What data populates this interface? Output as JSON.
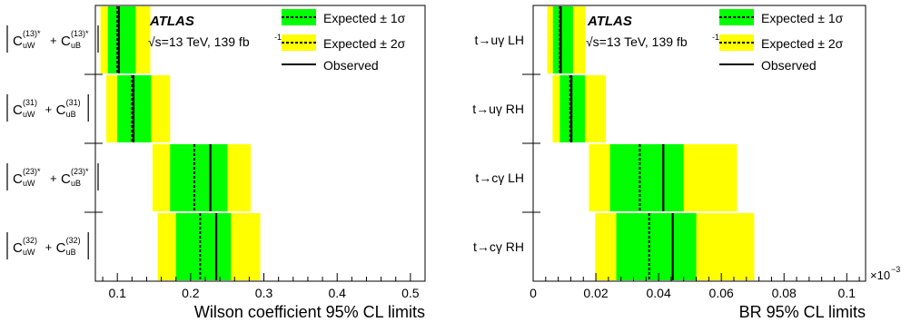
{
  "colors": {
    "band1": "#00ff00",
    "band2": "#ffff00",
    "line": "#000000"
  },
  "chart_data": [
    {
      "type": "interval",
      "xlabel": "Wilson coefficient 95% CL limits",
      "xlim": [
        0.07,
        0.52
      ],
      "x_ticks": [
        "0.1",
        "0.2",
        "0.3",
        "0.4",
        "0.5"
      ],
      "atlas": "ATLAS",
      "energy_label": "√s=13 TeV, 139 fb",
      "lumi_sup": "-1",
      "legend": [
        {
          "label": "Expected ± 1σ",
          "style": "dashed-green"
        },
        {
          "label": "Expected ± 2σ",
          "style": "dashed-yellow"
        },
        {
          "label": "Observed",
          "style": "solid"
        }
      ],
      "rows": [
        {
          "label": "|C_uW^(13)* + C_uB^(13)*|",
          "parts": [
            [
              "C",
              "uW",
              "(13)*"
            ],
            [
              "C",
              "uB",
              "(13)*"
            ]
          ],
          "abs": true,
          "exp_m2": 0.077,
          "exp_m1": 0.087,
          "exp": 0.1,
          "exp_p1": 0.125,
          "exp_p2": 0.145,
          "obs": 0.102
        },
        {
          "label": "|C_uW^(31) + C_uB^(31)|",
          "parts": [
            [
              "C",
              "uW",
              "(31)"
            ],
            [
              "C",
              "uB",
              "(31)"
            ]
          ],
          "abs": true,
          "exp_m2": 0.085,
          "exp_m1": 0.1,
          "exp": 0.12,
          "exp_p1": 0.146,
          "exp_p2": 0.172,
          "obs": 0.122
        },
        {
          "label": "|C_uW^(23)* + C_uB^(23)*|",
          "parts": [
            [
              "C",
              "uW",
              "(23)*"
            ],
            [
              "C",
              "uB",
              "(23)*"
            ]
          ],
          "abs": true,
          "exp_m2": 0.148,
          "exp_m1": 0.172,
          "exp": 0.205,
          "exp_p1": 0.25,
          "exp_p2": 0.282,
          "obs": 0.227
        },
        {
          "label": "|C_uW^(32) + C_uB^(32)|",
          "parts": [
            [
              "C",
              "uW",
              "(32)"
            ],
            [
              "C",
              "uB",
              "(32)"
            ]
          ],
          "abs": true,
          "exp_m2": 0.155,
          "exp_m1": 0.18,
          "exp": 0.213,
          "exp_p1": 0.255,
          "exp_p2": 0.295,
          "obs": 0.235
        }
      ]
    },
    {
      "type": "interval",
      "xlabel": "BR 95% CL limits",
      "xlim": [
        0,
        0.106
      ],
      "x_ticks": [
        "0",
        "0.02",
        "0.04",
        "0.06",
        "0.08",
        "0.1"
      ],
      "axis_exponent": "×10",
      "axis_exponent_sup": "−3",
      "atlas": "ATLAS",
      "energy_label": "√s=13 TeV, 139 fb",
      "lumi_sup": "-1",
      "legend": [
        {
          "label": "Expected ± 1σ",
          "style": "dashed-green"
        },
        {
          "label": "Expected ± 2σ",
          "style": "dashed-yellow"
        },
        {
          "label": "Observed",
          "style": "solid"
        }
      ],
      "rows": [
        {
          "label": "t→uγ LH",
          "parts": [
            [
              "t→uγ LH"
            ]
          ],
          "abs": false,
          "exp_m2": 0.0045,
          "exp_m1": 0.0063,
          "exp": 0.0085,
          "exp_p1": 0.0127,
          "exp_p2": 0.0167,
          "obs": 0.0088
        },
        {
          "label": "t→uγ RH",
          "parts": [
            [
              "t→uγ RH"
            ]
          ],
          "abs": false,
          "exp_m2": 0.0062,
          "exp_m1": 0.0085,
          "exp": 0.0118,
          "exp_p1": 0.0165,
          "exp_p2": 0.0232,
          "obs": 0.0122
        },
        {
          "label": "t→cγ LH",
          "parts": [
            [
              "t→cγ LH"
            ]
          ],
          "abs": false,
          "exp_m2": 0.0178,
          "exp_m1": 0.0245,
          "exp": 0.034,
          "exp_p1": 0.048,
          "exp_p2": 0.065,
          "obs": 0.0415
        },
        {
          "label": "t→cγ RH",
          "parts": [
            [
              "t→cγ RH"
            ]
          ],
          "abs": false,
          "exp_m2": 0.0198,
          "exp_m1": 0.0265,
          "exp": 0.037,
          "exp_p1": 0.052,
          "exp_p2": 0.0705,
          "obs": 0.0445
        }
      ]
    }
  ]
}
